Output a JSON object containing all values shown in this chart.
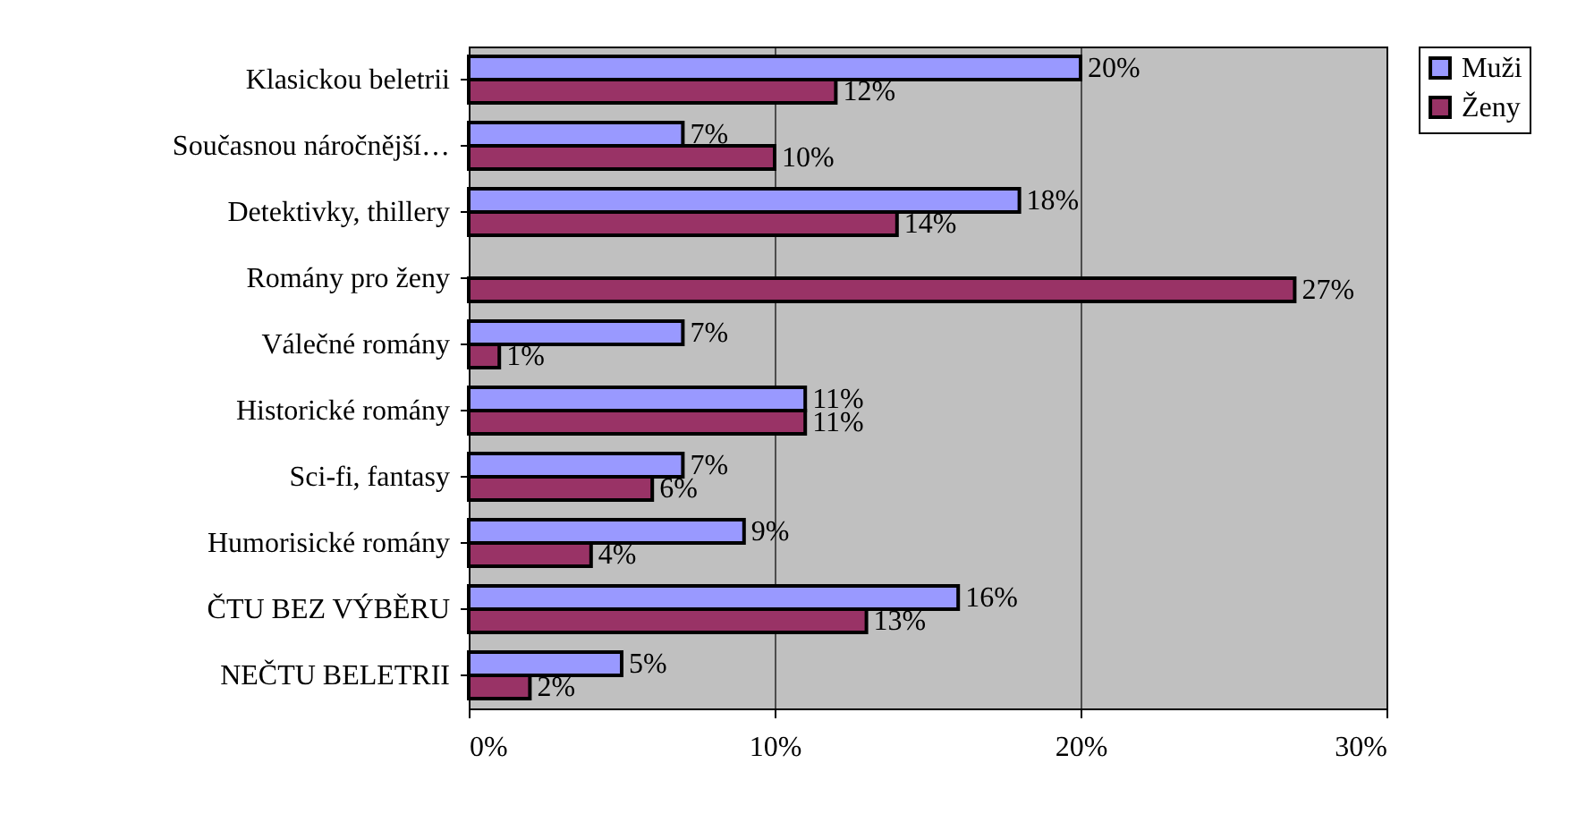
{
  "chart_data": {
    "type": "bar",
    "orientation": "horizontal",
    "categories": [
      "Klasickou beletrii",
      "Současnou náročnější…",
      "Detektivky, thillery",
      "Romány pro ženy",
      "Válečné romány",
      "Historické romány",
      "Sci-fi, fantasy",
      "Humorisické romány",
      "ČTU BEZ VÝBĚRU",
      "NEČTU BELETRII"
    ],
    "series": [
      {
        "name": "Muži",
        "color": "#9999ff",
        "values": [
          20,
          7,
          18,
          null,
          7,
          11,
          7,
          9,
          16,
          5
        ],
        "value_labels": [
          "20%",
          "7%",
          "18%",
          null,
          "7%",
          "11%",
          "7%",
          "9%",
          "16%",
          "5%"
        ]
      },
      {
        "name": "Ženy",
        "color": "#993366",
        "values": [
          12,
          10,
          14,
          27,
          1,
          11,
          6,
          4,
          13,
          2
        ],
        "value_labels": [
          "12%",
          "10%",
          "14%",
          "27%",
          "1%",
          "11%",
          "6%",
          "4%",
          "13%",
          "2%"
        ]
      }
    ],
    "xlim": [
      0,
      30
    ],
    "xticks": [
      {
        "value": 0,
        "label": "0%"
      },
      {
        "value": 10,
        "label": "10%"
      },
      {
        "value": 20,
        "label": "20%"
      },
      {
        "value": 30,
        "label": "30%"
      }
    ],
    "grid": "x",
    "legend": "right"
  }
}
